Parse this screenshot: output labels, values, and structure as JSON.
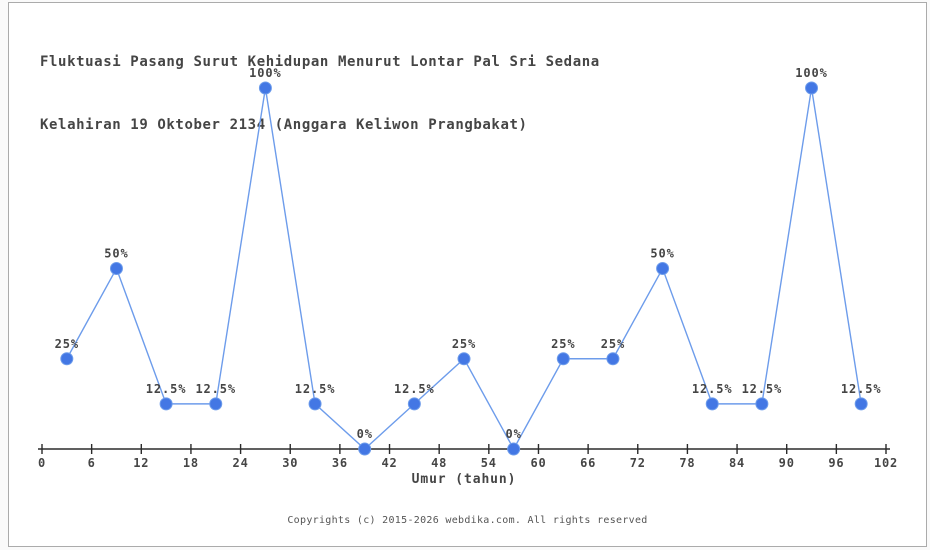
{
  "title": {
    "line1": "Fluktuasi Pasang Surut Kehidupan Menurut Lontar Pal Sri Sedana",
    "line2": "Kelahiran 19 Oktober 2134 (Anggara Keliwon Prangbakat)"
  },
  "chart_data": {
    "type": "line",
    "x": [
      3,
      9,
      15,
      21,
      27,
      33,
      39,
      45,
      51,
      57,
      63,
      69,
      75,
      81,
      87,
      93,
      99
    ],
    "values": [
      25,
      50,
      12.5,
      12.5,
      100,
      12.5,
      0,
      12.5,
      25,
      0,
      25,
      25,
      50,
      12.5,
      12.5,
      100,
      12.5
    ],
    "point_labels": [
      "25%",
      "50%",
      "12.5%",
      "12.5%",
      "100%",
      "12.5%",
      "0%",
      "12.5%",
      "25%",
      "0%",
      "25%",
      "25%",
      "50%",
      "12.5%",
      "12.5%",
      "100%",
      "12.5%"
    ],
    "x_ticks": [
      0,
      6,
      12,
      18,
      24,
      30,
      36,
      42,
      48,
      54,
      60,
      66,
      72,
      78,
      84,
      90,
      96,
      102
    ],
    "xlabel": "Umur (tahun)",
    "xlim": [
      0,
      102
    ],
    "ylim": [
      0,
      100
    ],
    "grid": false,
    "legend": "none",
    "line_color": "#6d9ceb",
    "marker_color": "#4377e4",
    "axis_color": "#2b2b2b",
    "label_color": "#454545"
  },
  "footer": {
    "copyright": "Copyrights (c) 2015-2026 webdika.com. All rights reserved"
  }
}
